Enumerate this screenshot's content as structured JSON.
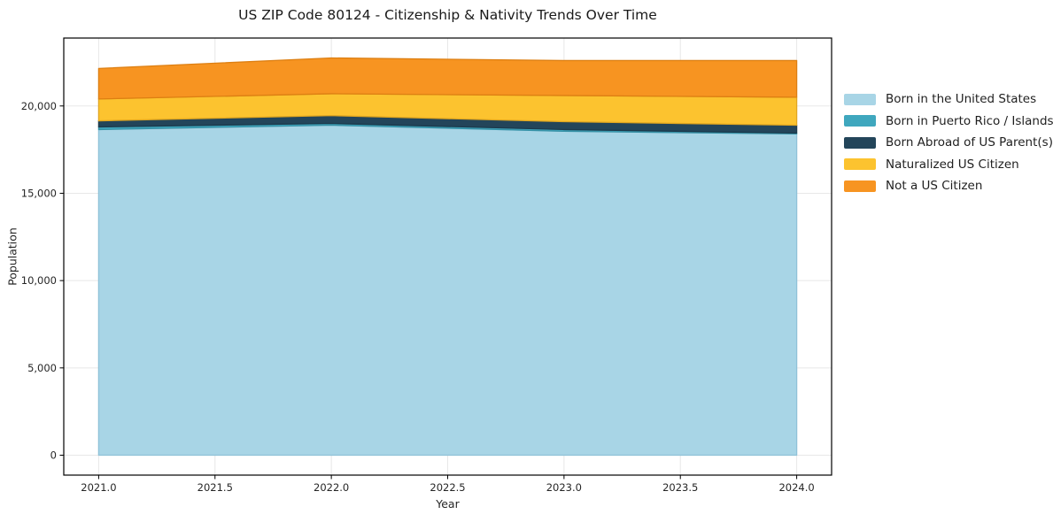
{
  "chart_data": {
    "type": "area",
    "stacked": true,
    "title": "US ZIP Code 80124 - Citizenship & Nativity Trends Over Time",
    "xlabel": "Year",
    "ylabel": "Population",
    "x": [
      2021,
      2022,
      2023,
      2024
    ],
    "series": [
      {
        "id": "born-us",
        "name": "Born in the United States",
        "color": "#A8D5E6",
        "edge_color": "#8FC2D8",
        "values": [
          18650,
          18900,
          18550,
          18400
        ]
      },
      {
        "id": "born-pr-islands",
        "name": "Born in Puerto Rico / Islands",
        "color": "#3FA7BE",
        "edge_color": "#3691A6",
        "values": [
          150,
          100,
          100,
          50
        ]
      },
      {
        "id": "born-abroad",
        "name": "Born Abroad of US Parent(s)",
        "color": "#23455A",
        "edge_color": "#1C3A4C",
        "values": [
          350,
          450,
          450,
          450
        ]
      },
      {
        "id": "naturalized",
        "name": "Naturalized US Citizen",
        "color": "#FCC32F",
        "edge_color": "#E2A71F",
        "values": [
          1250,
          1250,
          1500,
          1600
        ]
      },
      {
        "id": "not-citizen",
        "name": "Not a US Citizen",
        "color": "#F79421",
        "edge_color": "#DD7F12",
        "values": [
          1750,
          2050,
          2000,
          2100
        ]
      }
    ],
    "totals": [
      22150,
      22750,
      22600,
      22600
    ],
    "xlim": [
      2020.85,
      2024.15
    ],
    "ylim": [
      -1140,
      23890
    ],
    "xticks": [
      2021.0,
      2021.5,
      2022.0,
      2022.5,
      2023.0,
      2023.5,
      2024.0
    ],
    "xtick_labels": [
      "2021.0",
      "2021.5",
      "2022.0",
      "2022.5",
      "2023.0",
      "2023.5",
      "2024.0"
    ],
    "yticks": [
      0,
      5000,
      10000,
      15000,
      20000
    ],
    "ytick_labels": [
      "0",
      "5,000",
      "10,000",
      "15,000",
      "20,000"
    ],
    "grid": true,
    "grid_color": "#e8e8e8",
    "axis_color": "#000000",
    "tick_label_color": "#262626",
    "legend_position": "outside-right"
  }
}
